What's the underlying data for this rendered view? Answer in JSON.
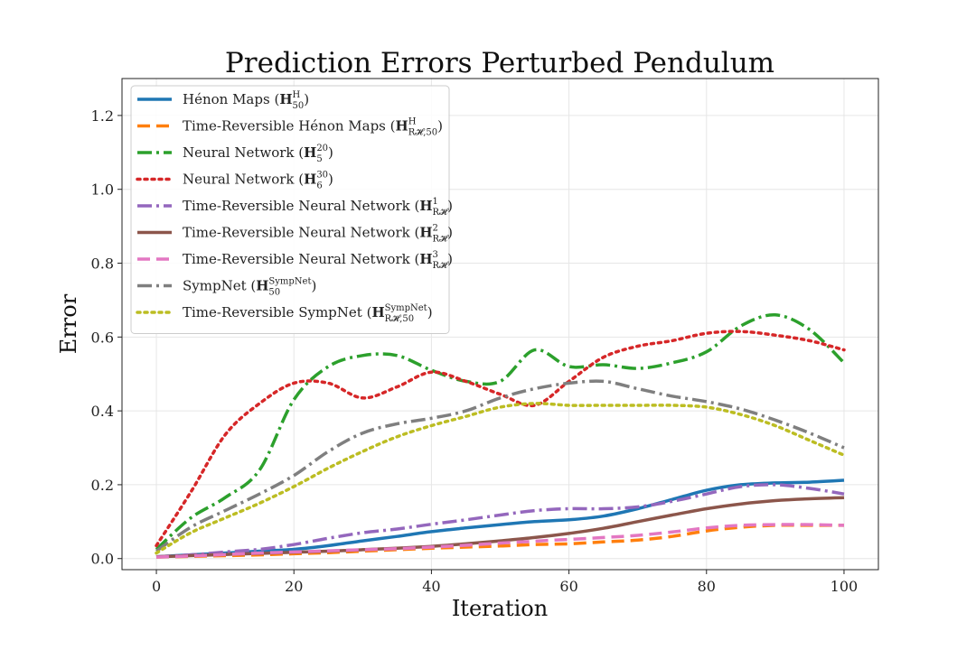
{
  "chart_data": {
    "type": "line",
    "title": "Prediction Errors Perturbed Pendulum",
    "xlabel": "Iteration",
    "ylabel": "Error",
    "xlim": [
      -5,
      105
    ],
    "ylim": [
      -0.03,
      1.3
    ],
    "xticks": [
      0,
      20,
      40,
      60,
      80,
      100
    ],
    "yticks": [
      0.0,
      0.2,
      0.4,
      0.6,
      0.8,
      1.0,
      1.2
    ],
    "grid": true,
    "legend_position": "upper-left",
    "x": [
      0,
      5,
      10,
      15,
      20,
      25,
      30,
      35,
      40,
      45,
      50,
      55,
      60,
      65,
      70,
      75,
      80,
      85,
      90,
      95,
      100
    ],
    "series": [
      {
        "name": "Hénon Maps",
        "symbol": "H",
        "sup": "H",
        "sub": "50",
        "color": "#1f77b4",
        "dash": "",
        "width": 3.5,
        "values": [
          0.005,
          0.01,
          0.015,
          0.02,
          0.025,
          0.035,
          0.048,
          0.06,
          0.073,
          0.083,
          0.092,
          0.1,
          0.105,
          0.115,
          0.135,
          0.16,
          0.185,
          0.2,
          0.205,
          0.207,
          0.212
        ]
      },
      {
        "name": "Time-Reversible Hénon Maps",
        "symbol": "H",
        "sup": "H",
        "sub": "R𝓗,50",
        "color": "#ff7f0e",
        "dash": "14,7",
        "width": 3.5,
        "values": [
          0.004,
          0.006,
          0.008,
          0.01,
          0.013,
          0.016,
          0.02,
          0.024,
          0.028,
          0.031,
          0.034,
          0.038,
          0.04,
          0.045,
          0.05,
          0.06,
          0.075,
          0.085,
          0.09,
          0.09,
          0.09
        ]
      },
      {
        "name": "Neural Network",
        "symbol": "H",
        "sup": "20",
        "sub": "5",
        "color": "#2ca02c",
        "dash": "16,5,3,5",
        "width": 3.5,
        "values": [
          0.025,
          0.11,
          0.165,
          0.24,
          0.43,
          0.52,
          0.55,
          0.55,
          0.51,
          0.48,
          0.48,
          0.565,
          0.52,
          0.525,
          0.515,
          0.53,
          0.56,
          0.63,
          0.66,
          0.62,
          0.53
        ]
      },
      {
        "name": "Neural Network",
        "symbol": "H",
        "sup": "30",
        "sub": "6",
        "color": "#d62728",
        "dash": "3,5",
        "width": 3.5,
        "values": [
          0.035,
          0.18,
          0.335,
          0.42,
          0.475,
          0.475,
          0.435,
          0.465,
          0.505,
          0.48,
          0.445,
          0.415,
          0.48,
          0.545,
          0.575,
          0.59,
          0.61,
          0.615,
          0.605,
          0.59,
          0.565
        ]
      },
      {
        "name": "Time-Reversible Neural Network",
        "symbol": "H",
        "sup": "1",
        "sub": "R𝓗",
        "color": "#9467bd",
        "dash": "16,5,3,5",
        "width": 3.5,
        "values": [
          0.005,
          0.01,
          0.018,
          0.025,
          0.038,
          0.055,
          0.07,
          0.08,
          0.093,
          0.105,
          0.118,
          0.13,
          0.135,
          0.135,
          0.14,
          0.155,
          0.175,
          0.195,
          0.2,
          0.19,
          0.175
        ]
      },
      {
        "name": "Time-Reversible Neural Network",
        "symbol": "H",
        "sup": "2",
        "sub": "R𝓗",
        "color": "#8c564b",
        "dash": "",
        "width": 3.5,
        "values": [
          0.005,
          0.008,
          0.011,
          0.014,
          0.017,
          0.02,
          0.024,
          0.028,
          0.033,
          0.04,
          0.048,
          0.057,
          0.068,
          0.082,
          0.1,
          0.118,
          0.135,
          0.148,
          0.157,
          0.162,
          0.165
        ]
      },
      {
        "name": "Time-Reversible Neural Network",
        "symbol": "H",
        "sup": "3",
        "sub": "R𝓗",
        "color": "#e377c2",
        "dash": "14,7",
        "width": 3.5,
        "values": [
          0.004,
          0.007,
          0.011,
          0.015,
          0.018,
          0.021,
          0.024,
          0.027,
          0.031,
          0.036,
          0.042,
          0.047,
          0.052,
          0.057,
          0.063,
          0.072,
          0.083,
          0.09,
          0.092,
          0.092,
          0.09
        ]
      },
      {
        "name": "SympNet",
        "symbol": "H",
        "sup": "SympNet",
        "sub": "50",
        "color": "#7f7f7f",
        "dash": "16,5,3,5",
        "width": 3.5,
        "values": [
          0.02,
          0.085,
          0.13,
          0.175,
          0.225,
          0.29,
          0.34,
          0.365,
          0.38,
          0.4,
          0.435,
          0.46,
          0.475,
          0.48,
          0.46,
          0.44,
          0.425,
          0.405,
          0.375,
          0.34,
          0.3
        ]
      },
      {
        "name": "Time-Reversible SympNet",
        "symbol": "H",
        "sup": "SympNet",
        "sub": "R𝓗,50",
        "color": "#bcbd22",
        "dash": "3,5",
        "width": 3.5,
        "values": [
          0.015,
          0.07,
          0.11,
          0.15,
          0.195,
          0.245,
          0.29,
          0.33,
          0.36,
          0.385,
          0.41,
          0.42,
          0.415,
          0.415,
          0.415,
          0.415,
          0.41,
          0.39,
          0.36,
          0.32,
          0.28
        ]
      }
    ]
  }
}
